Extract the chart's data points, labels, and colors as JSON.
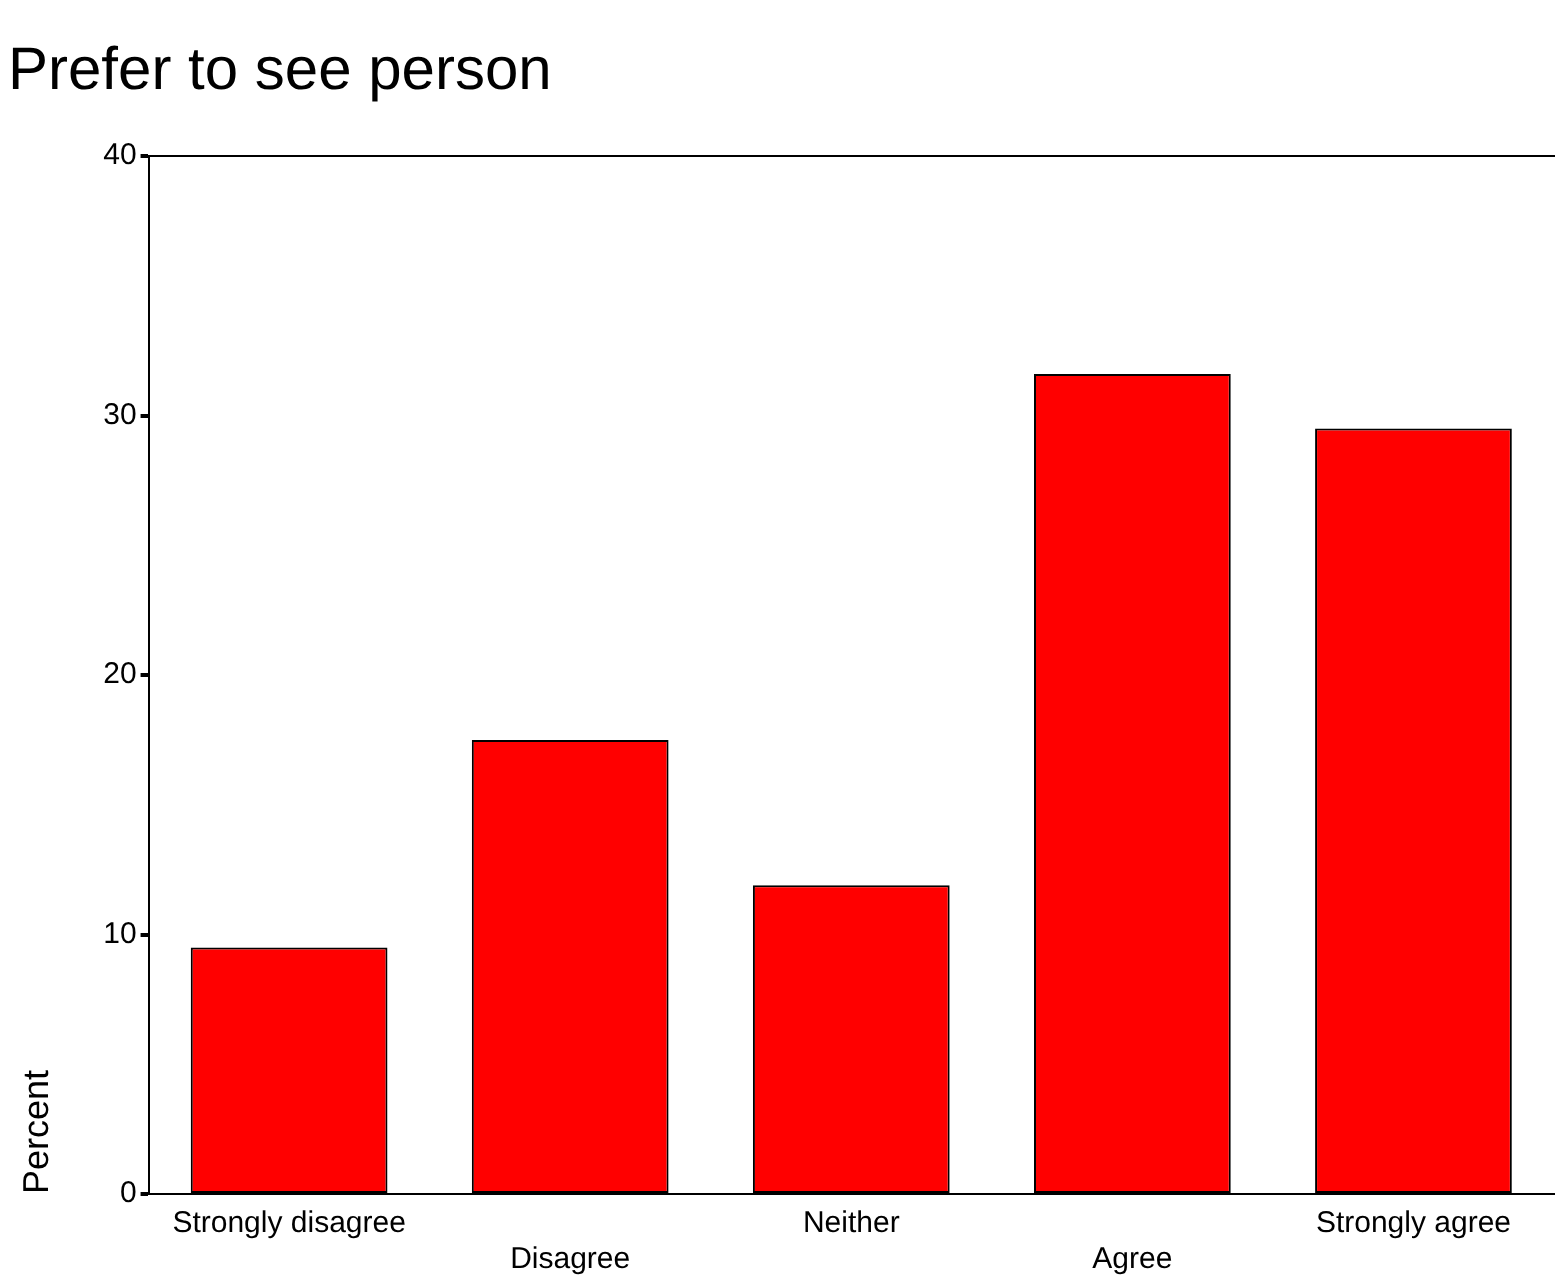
{
  "chart_data": {
    "type": "bar",
    "title": "Prefer to see person",
    "ylabel": "Percent",
    "categories": [
      "Strongly disagree",
      "Disagree",
      "Neither",
      "Agree",
      "Strongly agree"
    ],
    "values": [
      9.5,
      17.5,
      11.9,
      31.6,
      29.5
    ],
    "color": "#ff0000",
    "ylim": [
      0,
      40
    ],
    "yticks": [
      0,
      10,
      20,
      30,
      40
    ],
    "grid": false,
    "legend": false
  }
}
